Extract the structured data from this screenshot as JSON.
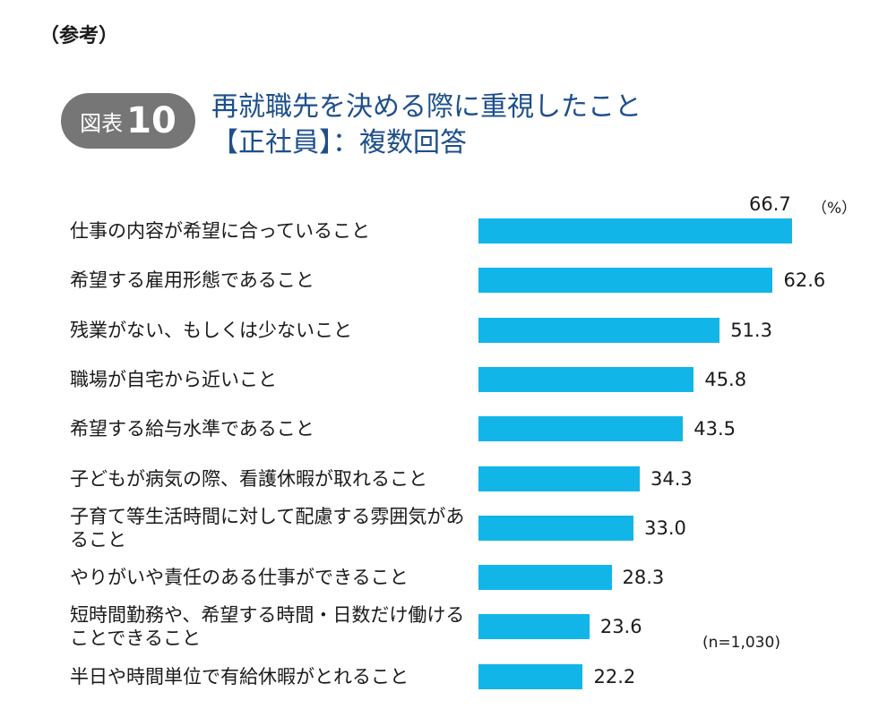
{
  "ref_note": "（参考）",
  "figure": {
    "badge_prefix": "図表",
    "badge_number": "10",
    "title_line1": "再就職先を決める際に重視したこと",
    "title_line2": "【正社員】：複数回答"
  },
  "chart_data": {
    "type": "bar",
    "orientation": "horizontal",
    "unit": "（%）",
    "note": "(n=1,030)",
    "xlim": [
      0,
      66.7
    ],
    "color": "#12b5e8",
    "categories": [
      "仕事の内容が希望に合っていること",
      "希望する雇用形態であること",
      "残業がない、もしくは少ないこと",
      "職場が自宅から近いこと",
      "希望する給与水準であること",
      "子どもが病気の際、看護休暇が取れること",
      "子育て等生活時間に対して配慮する雰囲気があること",
      "やりがいや責任のある仕事ができること",
      "短時間勤務や、希望する時間・日数だけ働けることできること",
      "半日や時間単位で有給休暇がとれること"
    ],
    "values": [
      66.7,
      62.6,
      51.3,
      45.8,
      43.5,
      34.3,
      33.0,
      28.3,
      23.6,
      22.2
    ],
    "value_labels": [
      "66.7",
      "62.6",
      "51.3",
      "45.8",
      "43.5",
      "34.3",
      "33.0",
      "28.3",
      "23.6",
      "22.2"
    ]
  }
}
